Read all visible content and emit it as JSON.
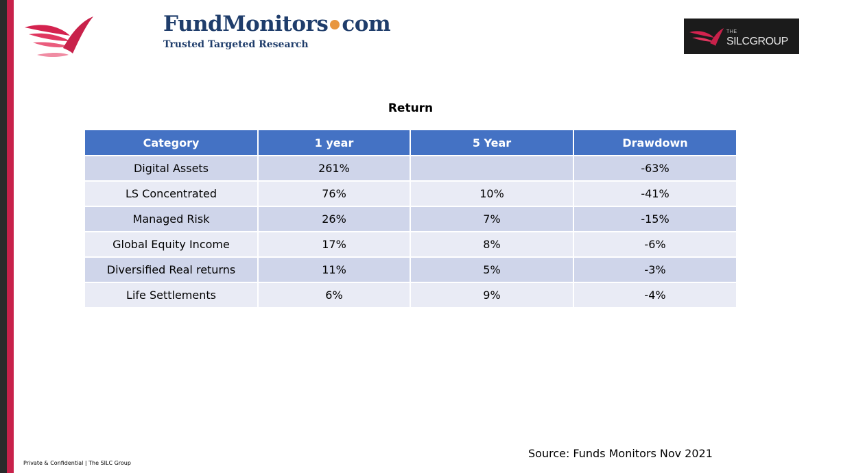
{
  "brand": {
    "name_left": "FundMonitors",
    "name_right": "com",
    "tagline": "Trusted Targeted Research",
    "dot_color": "#e8963f"
  },
  "partner_logo": {
    "prefix": "THE",
    "name": "SILCGROUP"
  },
  "table": {
    "title": "Return",
    "columns": [
      "Category",
      "1 year",
      "5 Year",
      "Drawdown"
    ],
    "rows": [
      [
        "Digital Assets",
        "261%",
        "",
        "-63%"
      ],
      [
        "LS Concentrated",
        "76%",
        "10%",
        "-41%"
      ],
      [
        "Managed Risk",
        "26%",
        "7%",
        "-15%"
      ],
      [
        "Global Equity Income",
        "17%",
        "8%",
        "-6%"
      ],
      [
        "Diversified Real returns",
        "11%",
        "5%",
        "-3%"
      ],
      [
        "Life Settlements",
        "6%",
        "9%",
        "-4%"
      ]
    ],
    "header_color": "#4472c4",
    "row_color_odd": "#cfd5ea",
    "row_color_even": "#e9ebf5"
  },
  "source": "Source: Funds Monitors Nov 2021",
  "footer": "Private & Confidential | The SILC Group",
  "accent_color": "#c8214a"
}
